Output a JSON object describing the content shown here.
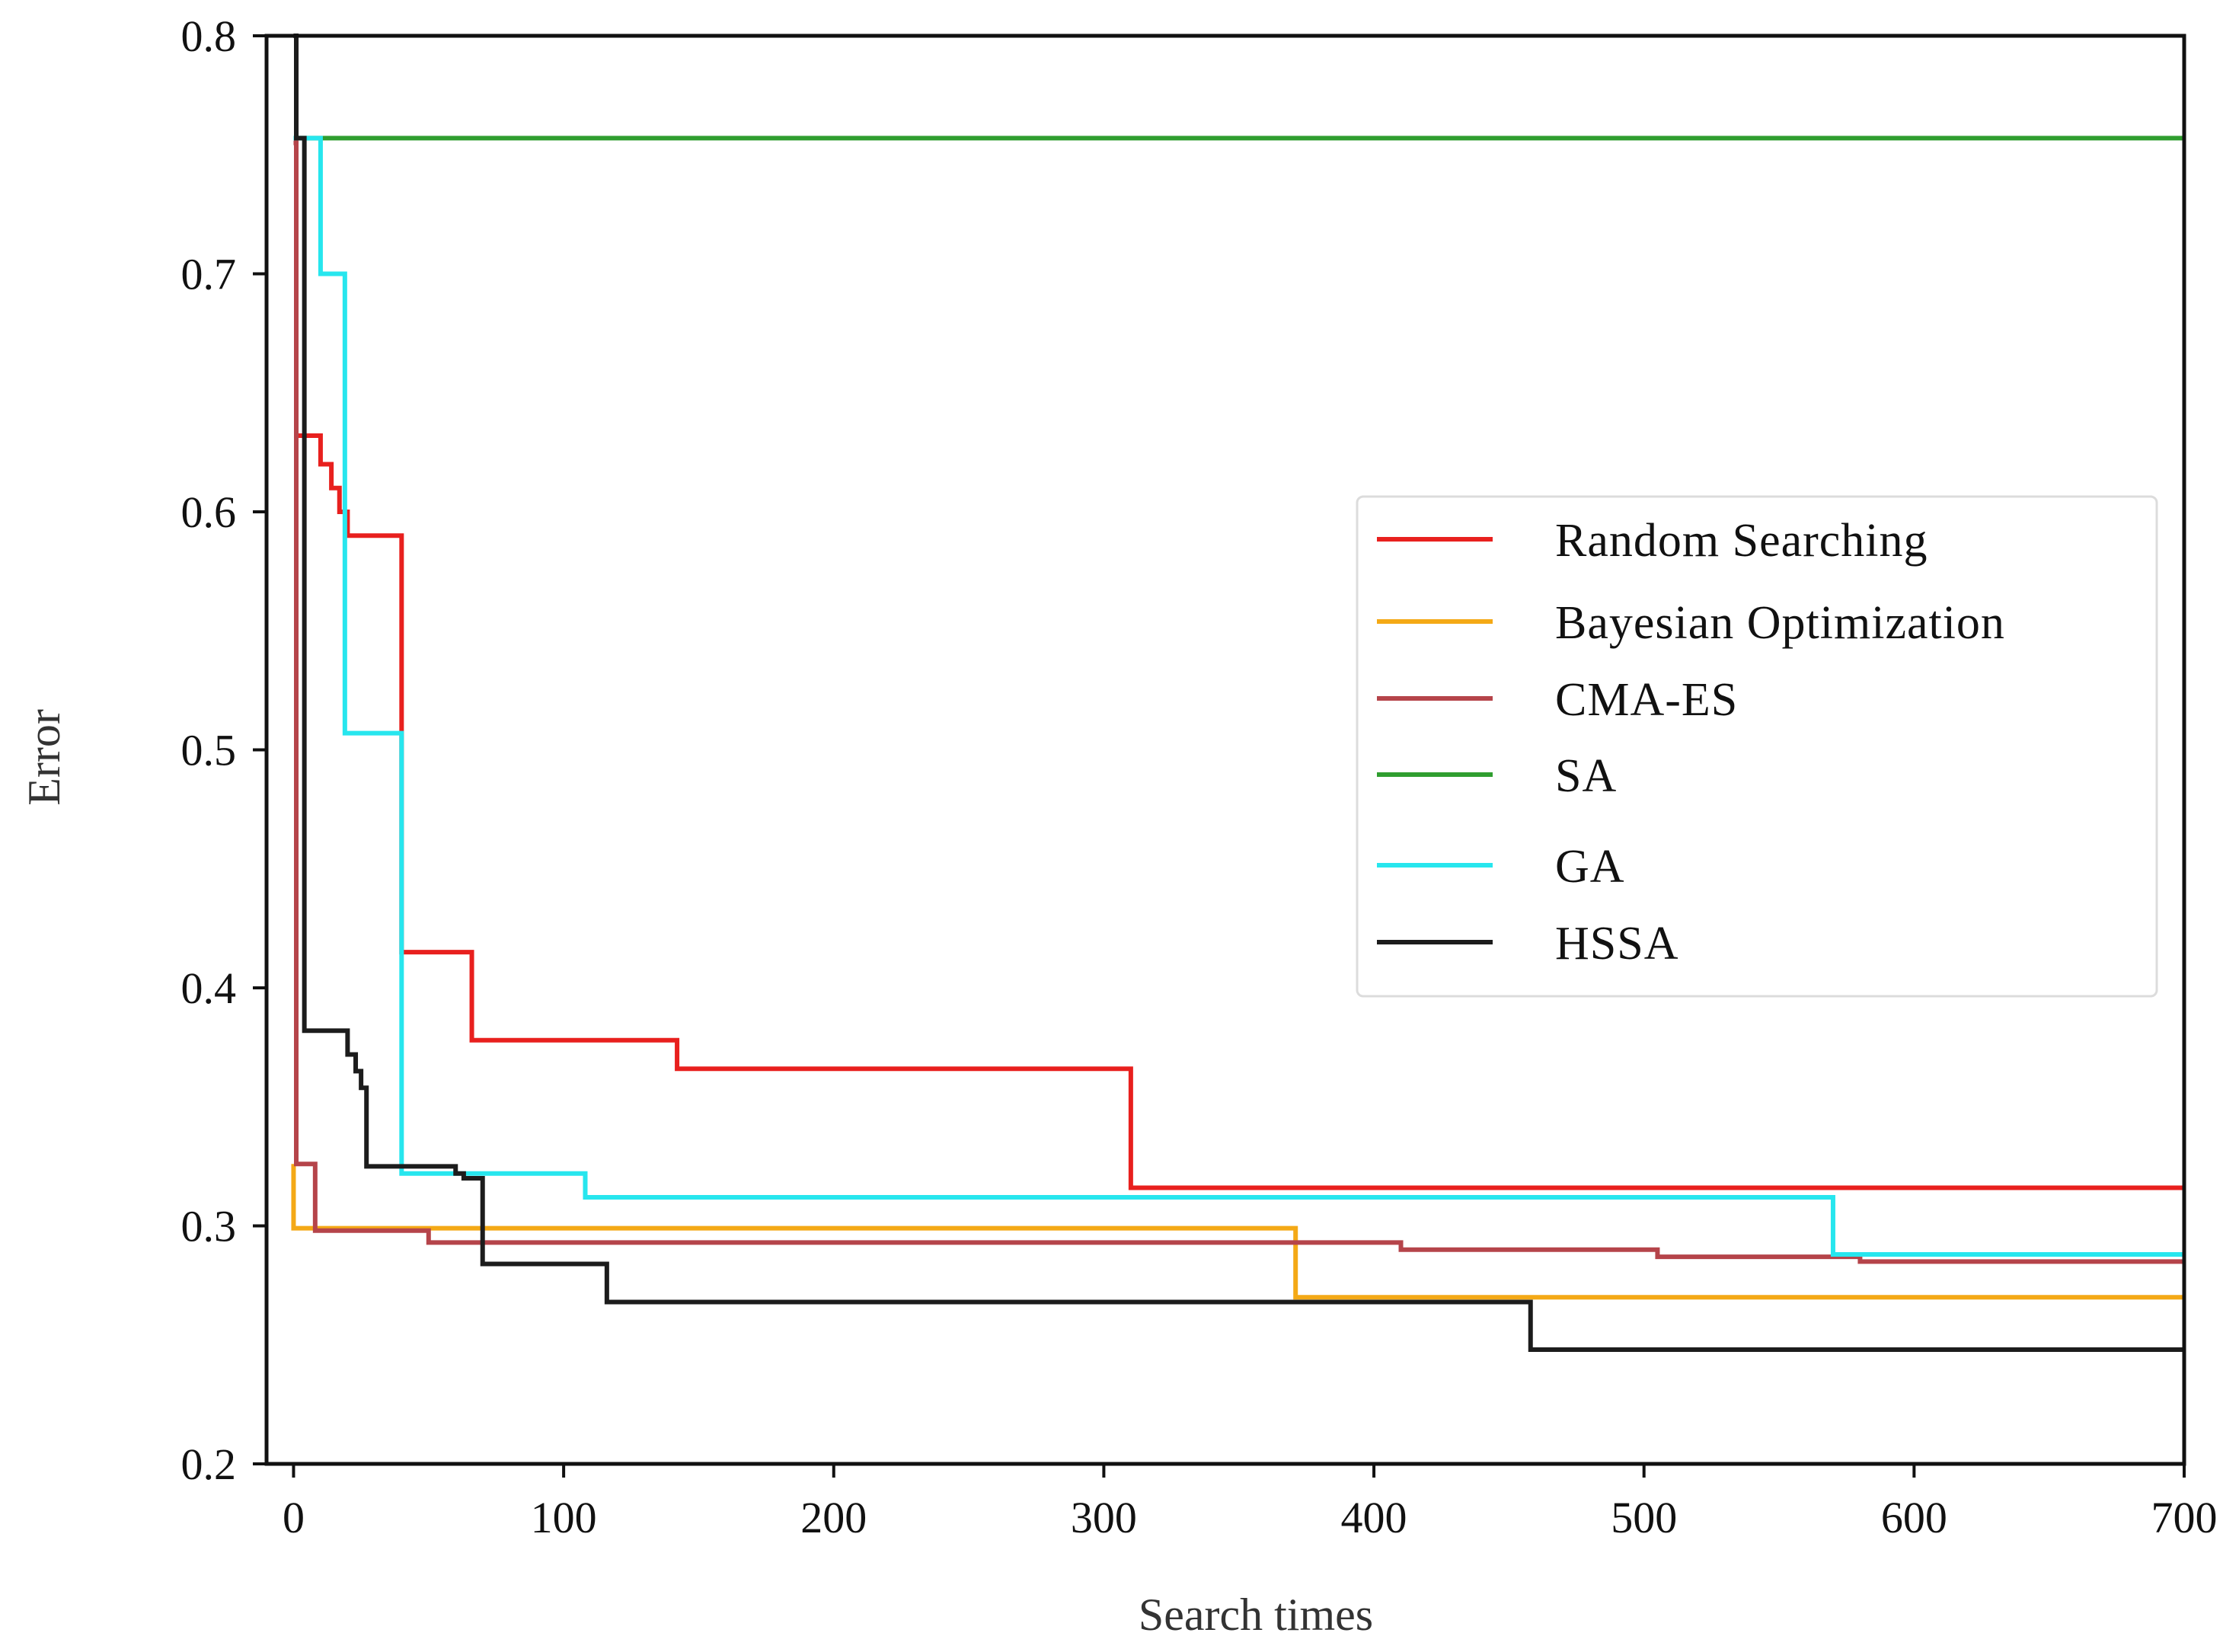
{
  "chart_data": {
    "type": "line",
    "title": "",
    "xlabel": "Search times",
    "ylabel": "Error",
    "xlim": [
      -10,
      700
    ],
    "ylim": [
      0.2,
      0.8
    ],
    "xticks": [
      0,
      100,
      200,
      300,
      400,
      500,
      600,
      700
    ],
    "xtick_labels": [
      "0",
      "100",
      "200",
      "300",
      "400",
      "500",
      "600",
      "700"
    ],
    "yticks": [
      0.2,
      0.3,
      0.4,
      0.5,
      0.6,
      0.7,
      0.8
    ],
    "ytick_labels": [
      "0.2",
      "0.3",
      "0.4",
      "0.5",
      "0.6",
      "0.7",
      "0.8"
    ],
    "grid": false,
    "legend_position": "center-right",
    "series": [
      {
        "name": "Random Searching",
        "color": "#e8201e",
        "step": "post",
        "x": [
          0,
          1,
          10,
          14,
          17,
          20,
          25,
          37,
          40,
          66,
          142,
          310,
          700
        ],
        "y": [
          0.8,
          0.632,
          0.62,
          0.61,
          0.6,
          0.59,
          0.59,
          0.59,
          0.415,
          0.378,
          0.366,
          0.316,
          0.316
        ]
      },
      {
        "name": "Bayesian Optimization",
        "color": "#f4a916",
        "step": "post",
        "x": [
          0,
          0,
          371,
          700
        ],
        "y": [
          0.326,
          0.299,
          0.27,
          0.27
        ]
      },
      {
        "name": "CMA-ES",
        "color": "#b5444a",
        "step": "post",
        "x": [
          0,
          1,
          8,
          50,
          410,
          505,
          580,
          700
        ],
        "y": [
          0.755,
          0.326,
          0.298,
          0.293,
          0.29,
          0.287,
          0.285,
          0.285
        ]
      },
      {
        "name": "SA",
        "color": "#2f9e2f",
        "step": "post",
        "x": [
          0,
          1,
          700
        ],
        "y": [
          0.8,
          0.757,
          0.757
        ]
      },
      {
        "name": "GA",
        "color": "#27e6ee",
        "step": "post",
        "x": [
          0,
          10,
          19,
          40,
          108,
          570,
          700
        ],
        "y": [
          0.757,
          0.7,
          0.507,
          0.322,
          0.312,
          0.288,
          0.288
        ]
      },
      {
        "name": "HSSA",
        "color": "#1c1c1c",
        "step": "post",
        "x": [
          0,
          1,
          4,
          20,
          23,
          25,
          27,
          60,
          63,
          70,
          116,
          458,
          700
        ],
        "y": [
          0.8,
          0.757,
          0.382,
          0.372,
          0.365,
          0.358,
          0.325,
          0.322,
          0.32,
          0.284,
          0.268,
          0.248,
          0.248
        ]
      }
    ]
  }
}
